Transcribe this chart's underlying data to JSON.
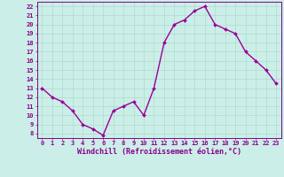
{
  "x": [
    0,
    1,
    2,
    3,
    4,
    5,
    6,
    7,
    8,
    9,
    10,
    11,
    12,
    13,
    14,
    15,
    16,
    17,
    18,
    19,
    20,
    21,
    22,
    23
  ],
  "y": [
    13,
    12,
    11.5,
    10.5,
    9,
    8.5,
    7.8,
    10.5,
    11,
    11.5,
    10,
    13,
    18,
    20,
    20.5,
    21.5,
    22,
    20,
    19.5,
    19,
    17,
    16,
    15,
    13.5
  ],
  "line_color": "#990099",
  "marker": "D",
  "marker_size": 2.0,
  "bg_color": "#cceee8",
  "grid_color": "#aaddcc",
  "xlabel": "Windchill (Refroidissement éolien,°C)",
  "xlim": [
    -0.5,
    23.5
  ],
  "ylim": [
    7.5,
    22.5
  ],
  "yticks": [
    8,
    9,
    10,
    11,
    12,
    13,
    14,
    15,
    16,
    17,
    18,
    19,
    20,
    21,
    22
  ],
  "xticks": [
    0,
    1,
    2,
    3,
    4,
    5,
    6,
    7,
    8,
    9,
    10,
    11,
    12,
    13,
    14,
    15,
    16,
    17,
    18,
    19,
    20,
    21,
    22,
    23
  ],
  "tick_color": "#880088",
  "label_color": "#880088",
  "xlabel_fontsize": 6.0,
  "tick_fontsize": 5.0,
  "axis_color": "#880088",
  "line_width": 1.0
}
